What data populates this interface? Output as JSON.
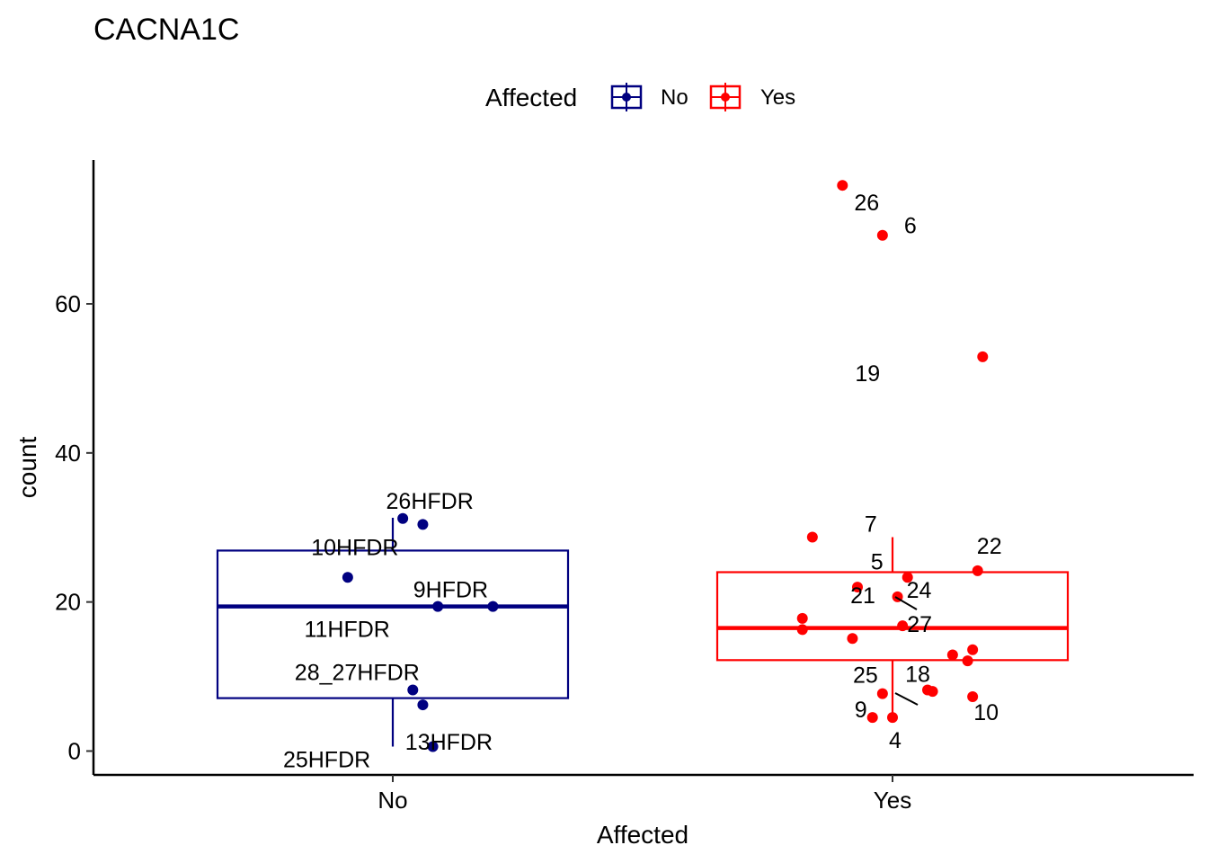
{
  "chart_data": {
    "type": "boxplot_jitter",
    "title": "CACNA1C",
    "xlabel": "Affected",
    "ylabel": "count",
    "categories": [
      "No",
      "Yes"
    ],
    "ylim": [
      -3.2,
      79.3
    ],
    "yticks": [
      0,
      20,
      40,
      60
    ],
    "ytick_labels": [
      "0",
      "20",
      "40",
      "60"
    ],
    "grid": false,
    "legend": {
      "title": "Affected",
      "position": "top",
      "entries": [
        {
          "label": "No",
          "color": "#000080"
        },
        {
          "label": "Yes",
          "color": "#FF0000"
        }
      ]
    },
    "series": [
      {
        "name": "No",
        "color": "#000080",
        "box": {
          "whisker_low": 0.6,
          "q1": 7.1,
          "median": 19.4,
          "q3": 26.9,
          "whisker_high": 31.3
        },
        "points": [
          {
            "label": "26HFDR",
            "x": 0.02,
            "y": 31.2
          },
          {
            "label": "",
            "x": 0.06,
            "y": 30.4
          },
          {
            "label": "10HFDR",
            "x": -0.09,
            "y": 23.3
          },
          {
            "label": "9HFDR",
            "x": 0.2,
            "y": 19.4
          },
          {
            "label": "11HFDR",
            "x": 0.09,
            "y": 19.4
          },
          {
            "label": "28_27HFDR",
            "x": 0.04,
            "y": 8.2
          },
          {
            "label": "13HFDR",
            "x": 0.06,
            "y": 6.2
          },
          {
            "label": "25HFDR",
            "x": 0.08,
            "y": 0.6
          }
        ]
      },
      {
        "name": "Yes",
        "color": "#FF0000",
        "box": {
          "whisker_low": 4.5,
          "q1": 12.2,
          "median": 16.5,
          "q3": 24.0,
          "whisker_high": 28.7
        },
        "points": [
          {
            "label": "26",
            "x": -0.1,
            "y": 75.9
          },
          {
            "label": "6",
            "x": -0.02,
            "y": 69.2
          },
          {
            "label": "19",
            "x": 0.18,
            "y": 52.9
          },
          {
            "label": "7",
            "x": -0.16,
            "y": 28.7
          },
          {
            "label": "22",
            "x": 0.17,
            "y": 24.2
          },
          {
            "label": "5",
            "x": 0.03,
            "y": 23.3
          },
          {
            "label": "21",
            "x": -0.07,
            "y": 22.0
          },
          {
            "label": "24",
            "x": 0.01,
            "y": 20.7
          },
          {
            "label": "",
            "x": -0.18,
            "y": 17.8
          },
          {
            "label": "27",
            "x": 0.02,
            "y": 16.8
          },
          {
            "label": "",
            "x": -0.18,
            "y": 16.3
          },
          {
            "label": "",
            "x": -0.08,
            "y": 15.1
          },
          {
            "label": "",
            "x": 0.12,
            "y": 12.9
          },
          {
            "label": "",
            "x": 0.16,
            "y": 13.6
          },
          {
            "label": "",
            "x": 0.15,
            "y": 12.1
          },
          {
            "label": "25",
            "x": -0.02,
            "y": 7.7
          },
          {
            "label": "18",
            "x": 0.07,
            "y": 8.2
          },
          {
            "label": "",
            "x": 0.08,
            "y": 8.0
          },
          {
            "label": "10",
            "x": 0.16,
            "y": 7.3
          },
          {
            "label": "9",
            "x": -0.04,
            "y": 4.5
          },
          {
            "label": "4",
            "x": 0.0,
            "y": 4.5
          }
        ]
      }
    ]
  }
}
